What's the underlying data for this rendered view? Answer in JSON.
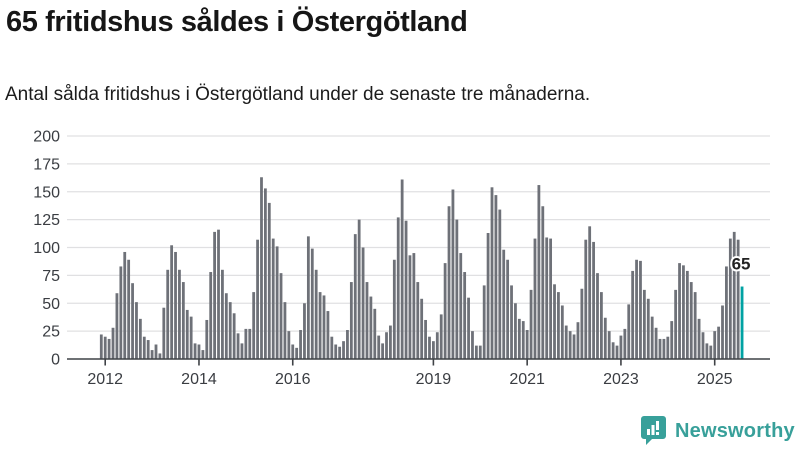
{
  "header": {
    "title": "65 fritidshus såldes i Östergötland",
    "subtitle": "Antal sålda fritidshus i Östergötland under de senaste tre månaderna."
  },
  "chart_data": {
    "type": "bar",
    "title": "Antal sålda fritidshus i Östergötland per månad",
    "frequency": "monthly",
    "start_month": "2011-12",
    "end_month": "2025-08",
    "values": [
      22,
      20,
      18,
      28,
      59,
      83,
      96,
      89,
      68,
      51,
      36,
      20,
      17,
      8,
      13,
      5,
      46,
      80,
      102,
      96,
      80,
      69,
      44,
      38,
      14,
      13,
      8,
      35,
      78,
      114,
      116,
      80,
      59,
      51,
      41,
      23,
      14,
      27,
      27,
      60,
      107,
      163,
      153,
      140,
      108,
      101,
      77,
      51,
      25,
      13,
      10,
      26,
      50,
      110,
      99,
      80,
      60,
      57,
      43,
      20,
      13,
      11,
      16,
      26,
      69,
      112,
      125,
      100,
      69,
      56,
      45,
      21,
      14,
      24,
      30,
      89,
      127,
      161,
      124,
      93,
      95,
      69,
      54,
      35,
      20,
      16,
      24,
      40,
      86,
      137,
      152,
      125,
      95,
      78,
      55,
      25,
      12,
      12,
      66,
      113,
      154,
      147,
      134,
      98,
      89,
      66,
      50,
      36,
      34,
      26,
      62,
      108,
      156,
      137,
      109,
      108,
      67,
      60,
      48,
      30,
      25,
      22,
      33,
      63,
      107,
      119,
      105,
      77,
      60,
      37,
      25,
      15,
      12,
      21,
      27,
      49,
      79,
      89,
      88,
      62,
      54,
      38,
      28,
      18,
      18,
      20,
      34,
      62,
      86,
      84,
      79,
      69,
      60,
      36,
      24,
      14,
      12,
      25,
      29,
      48,
      83,
      108,
      114,
      107,
      65
    ],
    "highlight": {
      "index": 164,
      "value": 65,
      "label": "65",
      "color": "#00a2a3"
    },
    "bar_color": "#6e7178",
    "grid_color": "#e0e0e2",
    "axis_color": "#3f4246",
    "ylim": [
      0,
      200
    ],
    "yticks": [
      0,
      25,
      50,
      75,
      100,
      125,
      150,
      175,
      200
    ],
    "xticks": [
      {
        "label": "2012",
        "month_index": 1
      },
      {
        "label": "2014",
        "month_index": 25
      },
      {
        "label": "2016",
        "month_index": 49
      },
      {
        "label": "2019",
        "month_index": 85
      },
      {
        "label": "2021",
        "month_index": 109
      },
      {
        "label": "2023",
        "month_index": 133
      },
      {
        "label": "2025",
        "month_index": 157
      }
    ],
    "legend": null,
    "grid": true
  },
  "footer": {
    "brand": "Newsworthy",
    "brand_color": "#38a09a",
    "logo_icon": "bar-chart-speech-bubble-icon"
  }
}
